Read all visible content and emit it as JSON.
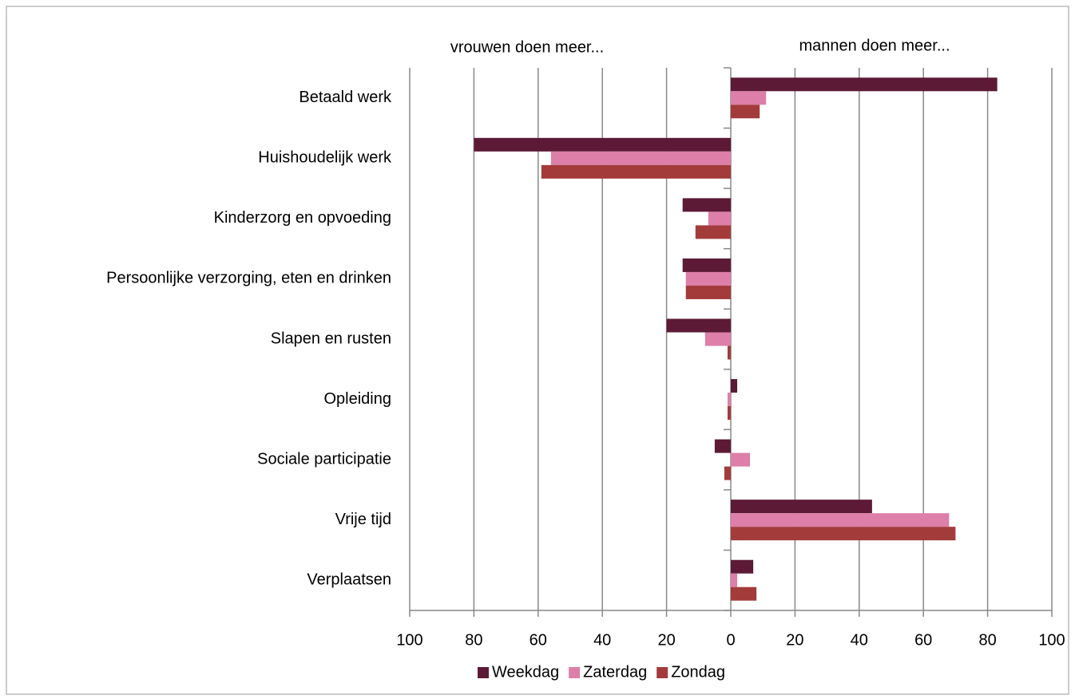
{
  "chart_data": {
    "type": "bar",
    "orientation": "horizontal",
    "annotations": [
      "vrouwen doen meer...",
      "mannen doen meer..."
    ],
    "categories": [
      "Betaald werk",
      "Huishoudelijk werk",
      "Kinderzorg en opvoeding",
      "Persoonlijke verzorging, eten en drinken",
      "Slapen en rusten",
      "Opleiding",
      "Sociale participatie",
      "Vrije tijd",
      "Verplaatsen"
    ],
    "series": [
      {
        "name": "Weekdag",
        "color": "#5c1a36",
        "values": [
          83,
          -80,
          -15,
          -15,
          -20,
          2,
          -5,
          44,
          7
        ]
      },
      {
        "name": "Zaterdag",
        "color": "#dd7fa8",
        "values": [
          11,
          -56,
          -7,
          -14,
          -8,
          -1,
          6,
          68,
          2
        ]
      },
      {
        "name": "Zondag",
        "color": "#a33b3b",
        "values": [
          9,
          -59,
          -11,
          -14,
          -1,
          -1,
          -2,
          70,
          8
        ]
      }
    ],
    "xlim": [
      -100,
      100
    ],
    "xticks": [
      {
        "value": -100,
        "label": "100"
      },
      {
        "value": -80,
        "label": "80"
      },
      {
        "value": -60,
        "label": "60"
      },
      {
        "value": -40,
        "label": "40"
      },
      {
        "value": -20,
        "label": "20"
      },
      0,
      20,
      40,
      60,
      80,
      100
    ],
    "grid": true,
    "legend": "bottom"
  }
}
